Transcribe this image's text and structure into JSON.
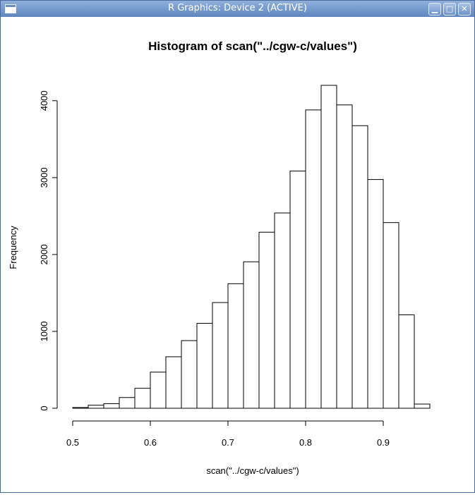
{
  "window": {
    "title": "R Graphics: Device 2 (ACTIVE)",
    "icons": [
      "window-menu-icon",
      "minimize-icon",
      "maximize-icon",
      "close-icon"
    ],
    "minimize_glyph": "▁",
    "maximize_glyph": "□",
    "close_glyph": "✕"
  },
  "chart_data": {
    "type": "bar",
    "title": "Histogram of scan(\"../cgw-c/values\")",
    "xlabel": "scan(\"../cgw-c/values\")",
    "ylabel": "Frequency",
    "bin_edges": [
      0.5,
      0.52,
      0.54,
      0.56,
      0.58,
      0.6,
      0.62,
      0.64,
      0.66,
      0.68,
      0.7,
      0.72,
      0.74,
      0.76,
      0.78,
      0.8,
      0.82,
      0.84,
      0.86,
      0.88,
      0.9,
      0.92,
      0.94,
      0.96
    ],
    "values": [
      10,
      40,
      60,
      140,
      260,
      470,
      670,
      880,
      1105,
      1375,
      1620,
      1905,
      2290,
      2540,
      3085,
      3880,
      4200,
      3945,
      3675,
      2975,
      2415,
      1215,
      55
    ],
    "xlim": [
      0.5,
      0.96
    ],
    "ylim": [
      0,
      4200
    ],
    "x_ticks": [
      0.5,
      0.6,
      0.7,
      0.8,
      0.9
    ],
    "x_tick_labels": [
      "0.5",
      "0.6",
      "0.7",
      "0.8",
      "0.9"
    ],
    "y_ticks": [
      0,
      1000,
      2000,
      3000,
      4000
    ],
    "y_tick_labels": [
      "0",
      "1000",
      "2000",
      "3000",
      "4000"
    ],
    "grid": false,
    "bar_fill": "#ffffff",
    "bar_stroke": "#000000"
  }
}
